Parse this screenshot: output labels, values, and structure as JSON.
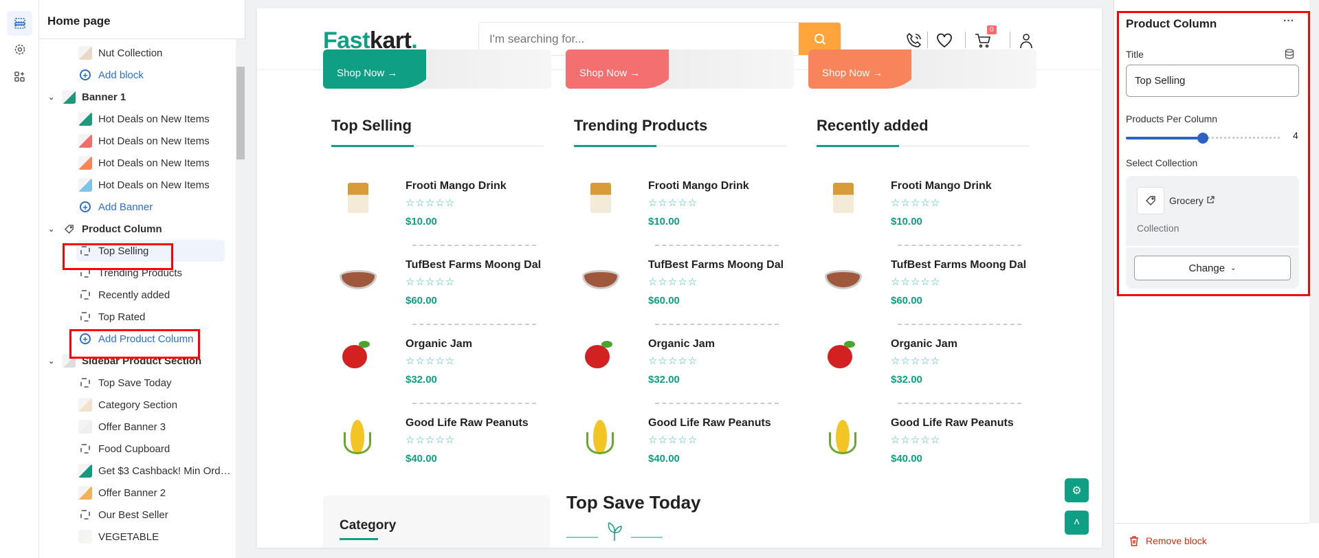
{
  "rail": {
    "icons": [
      "sections-icon",
      "settings-gear-icon",
      "apps-icon"
    ]
  },
  "left_panel": {
    "title": "Home page",
    "tree": [
      {
        "type": "block",
        "label": "Nut Collection",
        "thumb": "#e8d9c7"
      },
      {
        "type": "add",
        "label": "Add block"
      },
      {
        "type": "section",
        "label": "Banner 1",
        "thumb": "#1d9a7a"
      },
      {
        "type": "block",
        "label": "Hot Deals on New Items",
        "thumb": "#1d9a7a"
      },
      {
        "type": "block",
        "label": "Hot Deals on New Items",
        "thumb": "#f36d6d"
      },
      {
        "type": "block",
        "label": "Hot Deals on New Items",
        "thumb": "#f7855c"
      },
      {
        "type": "block",
        "label": "Hot Deals on New Items",
        "thumb": "#7ec3ea"
      },
      {
        "type": "add",
        "label": "Add Banner"
      },
      {
        "type": "section",
        "label": "Product Column",
        "icon": "tag-icon"
      },
      {
        "type": "dash",
        "label": "Top Selling",
        "selected": true
      },
      {
        "type": "dash",
        "label": "Trending Products"
      },
      {
        "type": "dash",
        "label": "Recently added"
      },
      {
        "type": "dash",
        "label": "Top Rated"
      },
      {
        "type": "add",
        "label": "Add Product Column"
      },
      {
        "type": "section",
        "label": "Sidebar Product Section",
        "thumb": "#dddddd"
      },
      {
        "type": "dash",
        "label": "Top Save Today"
      },
      {
        "type": "block",
        "label": "Category Section",
        "thumb": "#f3e1c9"
      },
      {
        "type": "block",
        "label": "Offer Banner 3",
        "thumb": "#eef0ee"
      },
      {
        "type": "dash",
        "label": "Food Cupboard"
      },
      {
        "type": "block",
        "label": "Get $3 Cashback! Min Ord…",
        "thumb": "#139a7c"
      },
      {
        "type": "block",
        "label": "Offer Banner 2",
        "thumb": "#f4b15a"
      },
      {
        "type": "dash",
        "label": "Our Best Seller"
      },
      {
        "type": "block",
        "label": "VEGETABLE",
        "thumb": "#f5f6f2"
      }
    ]
  },
  "store": {
    "logo_part1": "Fast",
    "logo_part2": "kart",
    "logo_dot": ".",
    "search_placeholder": "I'm searching for...",
    "cart_count": "0",
    "banners": [
      {
        "cta": "Shop Now →",
        "color": "#0e9f84"
      },
      {
        "cta": "Shop Now →",
        "color": "#f46f6f"
      },
      {
        "cta": "Shop Now →",
        "color": "#f7845a"
      }
    ],
    "columns": [
      {
        "title": "Top Selling",
        "products": [
          {
            "name": "Frooti Mango Drink",
            "price": "$10.00",
            "rating": 0
          },
          {
            "name": "TufBest Farms Moong Dal",
            "price": "$60.00",
            "rating": 0
          },
          {
            "name": "Organic Jam",
            "price": "$32.00",
            "rating": 0
          },
          {
            "name": "Good Life Raw Peanuts",
            "price": "$40.00",
            "rating": 0
          }
        ]
      },
      {
        "title": "Trending Products",
        "products": [
          {
            "name": "Frooti Mango Drink",
            "price": "$10.00",
            "rating": 0
          },
          {
            "name": "TufBest Farms Moong Dal",
            "price": "$60.00",
            "rating": 0
          },
          {
            "name": "Organic Jam",
            "price": "$32.00",
            "rating": 0
          },
          {
            "name": "Good Life Raw Peanuts",
            "price": "$40.00",
            "rating": 0
          }
        ]
      },
      {
        "title": "Recently added",
        "products": [
          {
            "name": "Frooti Mango Drink",
            "price": "$10.00",
            "rating": 0
          },
          {
            "name": "TufBest Farms Moong Dal",
            "price": "$60.00",
            "rating": 0
          },
          {
            "name": "Organic Jam",
            "price": "$32.00",
            "rating": 0
          },
          {
            "name": "Good Life Raw Peanuts",
            "price": "$40.00",
            "rating": 0
          }
        ]
      }
    ],
    "stars": "☆☆☆☆☆",
    "category_title": "Category",
    "top_save_title": "Top Save Today",
    "accent": "#0e9f84"
  },
  "right_panel": {
    "title": "Product Column",
    "more": "···",
    "title_label": "Title",
    "title_value": "Top Selling",
    "ppc_label": "Products Per Column",
    "ppc_value": "4",
    "ppc_fraction": 0.5,
    "collection_label": "Select Collection",
    "collection_name": "Grocery",
    "collection_type": "Collection",
    "change_label": "Change",
    "remove_label": "Remove block"
  }
}
